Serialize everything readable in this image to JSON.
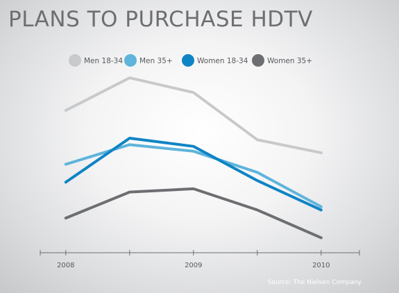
{
  "title": "PLANS TO PURCHASE HDTV",
  "source": "Source: The Nielsen Company",
  "chart_data": {
    "type": "line",
    "title": "PLANS TO PURCHASE HDTV",
    "x": [
      2008,
      2008.5,
      2009,
      2009.5,
      2010
    ],
    "tick_labels": [
      "2008",
      "2009",
      "2010"
    ],
    "tick_values": [
      2008,
      2009,
      2010
    ],
    "xlim": [
      2007.8,
      2010.3
    ],
    "ylim": [
      0,
      100
    ],
    "legend_position": "top",
    "grid": false,
    "series": [
      {
        "name": "Men 18-34",
        "color": "#c8c9cb",
        "values": [
          77,
          97,
          88,
          59,
          51
        ]
      },
      {
        "name": "Men 35+",
        "color": "#5fb4dc",
        "values": [
          44,
          56,
          52,
          39,
          18
        ]
      },
      {
        "name": "Women 18-34",
        "color": "#0f84c4",
        "values": [
          33,
          60,
          55,
          34,
          16
        ]
      },
      {
        "name": "Women 35+",
        "color": "#6d6e71",
        "values": [
          11,
          27,
          29,
          16,
          -1
        ]
      }
    ]
  }
}
